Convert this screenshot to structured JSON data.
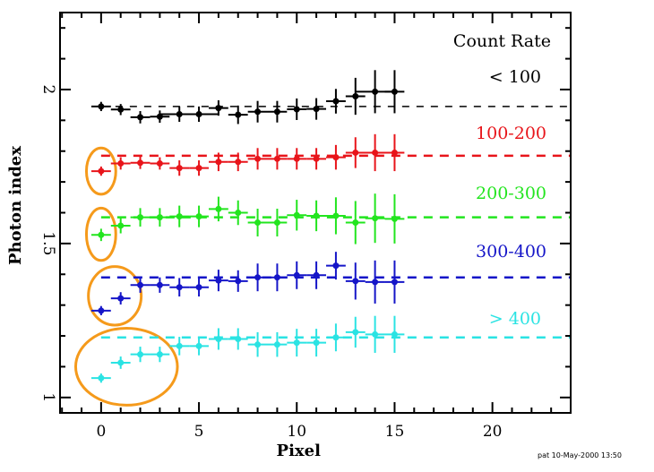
{
  "chart_data": {
    "type": "scatter",
    "title": "",
    "xlabel": "Pixel",
    "ylabel": "Photon index",
    "xlim": [
      -2.1,
      24
    ],
    "ylim": [
      0.95,
      2.25
    ],
    "x_ticks": [
      0,
      5,
      10,
      15,
      20
    ],
    "y_ticks": [
      1,
      1.5,
      2
    ],
    "y_tick_labels": [
      "1",
      "1.5",
      "2"
    ],
    "legend_title": "Count Rate",
    "legend_placement": "right",
    "grid": false,
    "footer": "pat 10-May-2000 13:50",
    "highlight_color": "#f59a1b",
    "series": [
      {
        "name": "< 100",
        "color": "#000000",
        "reference_level": 1.945,
        "x": [
          0,
          1,
          2,
          3,
          4,
          5,
          6,
          7,
          8,
          9,
          10,
          11,
          12,
          13,
          14,
          15
        ],
        "y": [
          1.945,
          1.935,
          1.91,
          1.912,
          1.92,
          1.92,
          1.94,
          1.918,
          1.928,
          1.928,
          1.936,
          1.937,
          1.962,
          1.978,
          1.993,
          1.993
        ],
        "yerr": [
          0.015,
          0.018,
          0.02,
          0.02,
          0.025,
          0.025,
          0.025,
          0.03,
          0.035,
          0.035,
          0.035,
          0.035,
          0.04,
          0.06,
          0.07,
          0.07
        ],
        "xerr": [
          0.5,
          0.5,
          0.5,
          0.5,
          1.0,
          1.0,
          0.5,
          0.5,
          0.5,
          0.5,
          0.5,
          0.5,
          0.5,
          0.5,
          1.0,
          0.5
        ],
        "highlighted": false
      },
      {
        "name": "100-200",
        "color": "#e8141a",
        "reference_level": 1.785,
        "x": [
          0,
          1,
          2,
          3,
          4,
          5,
          6,
          7,
          8,
          9,
          10,
          11,
          12,
          13,
          14,
          15
        ],
        "y": [
          1.735,
          1.76,
          1.762,
          1.76,
          1.745,
          1.745,
          1.765,
          1.765,
          1.775,
          1.775,
          1.775,
          1.775,
          1.78,
          1.795,
          1.795,
          1.795
        ],
        "yerr": [
          0.015,
          0.02,
          0.02,
          0.02,
          0.025,
          0.025,
          0.03,
          0.03,
          0.035,
          0.035,
          0.035,
          0.035,
          0.04,
          0.05,
          0.06,
          0.06
        ],
        "xerr": [
          0.5,
          0.5,
          0.5,
          0.5,
          0.5,
          0.5,
          0.5,
          0.5,
          0.5,
          0.5,
          0.5,
          0.5,
          0.5,
          0.5,
          1.0,
          0.5
        ],
        "highlighted": true
      },
      {
        "name": "200-300",
        "color": "#22e51e",
        "reference_level": 1.585,
        "x": [
          0,
          1,
          2,
          3,
          4,
          5,
          6,
          7,
          8,
          9,
          10,
          11,
          12,
          13,
          14,
          15
        ],
        "y": [
          1.528,
          1.558,
          1.585,
          1.585,
          1.588,
          1.588,
          1.612,
          1.6,
          1.568,
          1.568,
          1.592,
          1.59,
          1.59,
          1.568,
          1.582,
          1.58
        ],
        "yerr": [
          0.02,
          0.025,
          0.03,
          0.03,
          0.035,
          0.035,
          0.04,
          0.04,
          0.045,
          0.045,
          0.05,
          0.05,
          0.06,
          0.07,
          0.08,
          0.08
        ],
        "xerr": [
          0.5,
          0.5,
          0.5,
          0.5,
          0.5,
          0.5,
          0.5,
          0.5,
          0.5,
          0.5,
          0.5,
          0.5,
          0.5,
          0.5,
          0.5,
          0.5
        ],
        "highlighted": true
      },
      {
        "name": "300-400",
        "color": "#1515c8",
        "reference_level": 1.39,
        "x": [
          0,
          1,
          2,
          3,
          4,
          5,
          6,
          7,
          8,
          9,
          10,
          11,
          12,
          13,
          14,
          15
        ],
        "y": [
          1.282,
          1.322,
          1.365,
          1.365,
          1.358,
          1.358,
          1.38,
          1.378,
          1.39,
          1.39,
          1.397,
          1.397,
          1.428,
          1.378,
          1.375,
          1.375
        ],
        "yerr": [
          0.015,
          0.02,
          0.025,
          0.025,
          0.03,
          0.03,
          0.035,
          0.035,
          0.045,
          0.045,
          0.045,
          0.045,
          0.045,
          0.06,
          0.07,
          0.07
        ],
        "xerr": [
          0.5,
          0.5,
          0.5,
          0.5,
          0.5,
          0.5,
          0.5,
          0.5,
          0.5,
          0.5,
          0.5,
          0.5,
          0.5,
          0.5,
          0.5,
          0.5
        ],
        "highlighted": true
      },
      {
        "name": "> 400",
        "color": "#2ae3e3",
        "reference_level": 1.195,
        "x": [
          0,
          1,
          2,
          3,
          4,
          5,
          6,
          7,
          8,
          9,
          10,
          11,
          12,
          13,
          14,
          15
        ],
        "y": [
          1.063,
          1.113,
          1.14,
          1.14,
          1.167,
          1.167,
          1.19,
          1.19,
          1.172,
          1.172,
          1.178,
          1.178,
          1.195,
          1.212,
          1.205,
          1.205
        ],
        "yerr": [
          0.015,
          0.02,
          0.025,
          0.025,
          0.03,
          0.03,
          0.035,
          0.035,
          0.04,
          0.04,
          0.045,
          0.045,
          0.045,
          0.05,
          0.06,
          0.06
        ],
        "xerr": [
          0.5,
          0.5,
          0.5,
          0.5,
          0.5,
          0.5,
          0.5,
          0.5,
          0.5,
          0.5,
          0.5,
          0.5,
          0.5,
          0.5,
          0.5,
          0.5
        ],
        "highlighted": true
      }
    ],
    "annotations": [
      {
        "type": "ellipse",
        "label": "100-200 pixel 0 highlight",
        "cx": 0,
        "cy": 1.735,
        "rx": 0.75,
        "ry": 0.075
      },
      {
        "type": "ellipse",
        "label": "200-300 pixel 0 highlight",
        "cx": 0,
        "cy": 1.53,
        "rx": 0.75,
        "ry": 0.085
      },
      {
        "type": "ellipse",
        "label": "300-400 pixels 0-1 highlight",
        "cx": 0.7,
        "cy": 1.33,
        "rx": 1.35,
        "ry": 0.095
      },
      {
        "type": "ellipse",
        "label": "> 400 pixels 0-3 highlight",
        "cx": 1.3,
        "cy": 1.1,
        "rx": 2.6,
        "ry": 0.125
      }
    ]
  }
}
